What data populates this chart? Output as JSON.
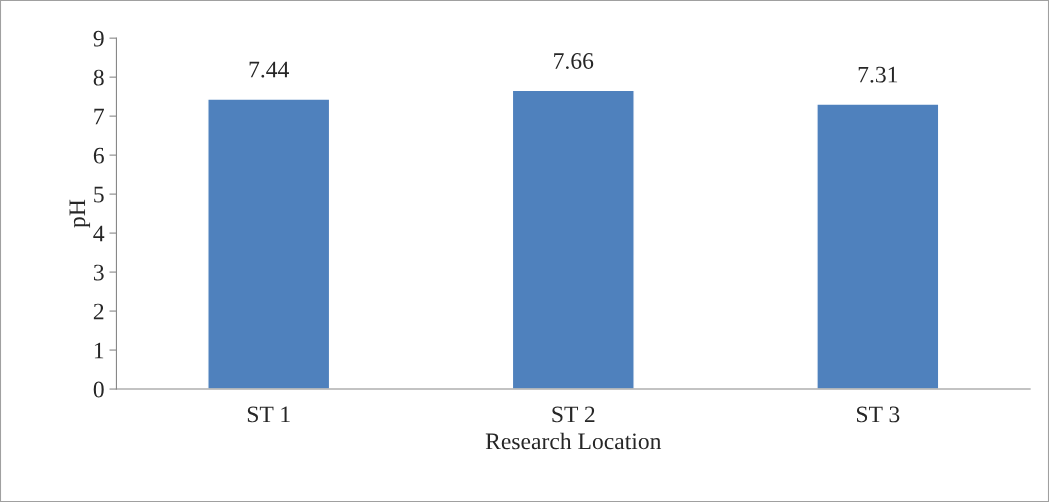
{
  "chart_data": {
    "type": "bar",
    "xlabel": "Research Location",
    "ylabel": "pH",
    "categories": [
      "ST 1",
      "ST 2",
      "ST 3"
    ],
    "values": [
      7.44,
      7.66,
      7.31
    ],
    "color": "#4f81bd",
    "ylim": [
      0,
      9
    ],
    "yticks": [
      0,
      1,
      2,
      3,
      4,
      5,
      6,
      7,
      8,
      9
    ],
    "grid": false,
    "data_labels": true
  }
}
